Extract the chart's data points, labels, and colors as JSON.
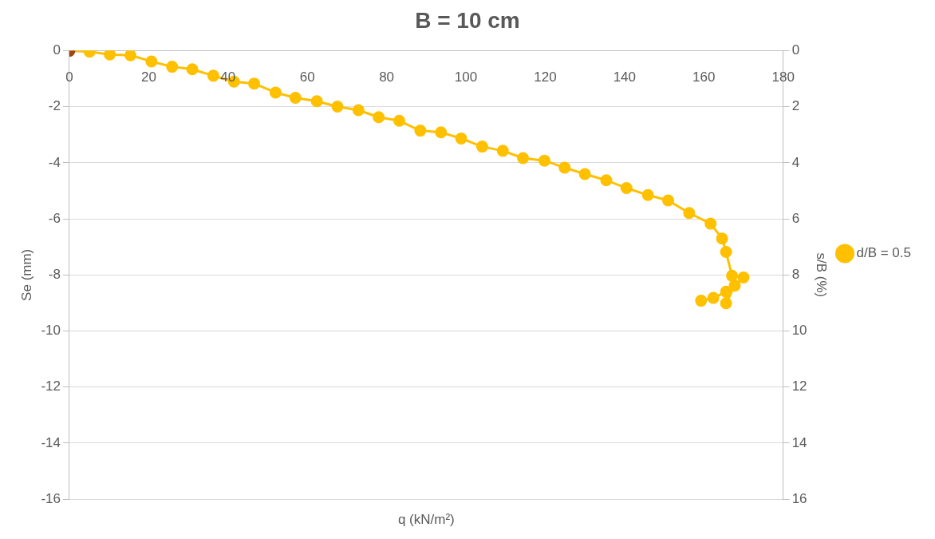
{
  "chart_data": {
    "type": "line",
    "title": "B = 10 cm",
    "xlabel": "q (kN/m²)",
    "ylabel": "Se (mm)",
    "y2label": "s/B (%)",
    "xlim": [
      0,
      180
    ],
    "xticks": [
      0,
      20,
      40,
      60,
      80,
      100,
      120,
      140,
      160,
      180
    ],
    "ylim": [
      -16,
      0
    ],
    "yticks": [
      -16,
      -14,
      -12,
      -10,
      -8,
      -6,
      -4,
      -2,
      0
    ],
    "y2lim": [
      16,
      0
    ],
    "y2ticks": [
      0,
      2,
      4,
      6,
      8,
      10,
      12,
      14,
      16
    ],
    "grid": "y",
    "legend": "right",
    "marker": "circle",
    "line_style": "solid",
    "series": [
      {
        "name": "d/B = 0.5",
        "color": "#ffc000",
        "colors": [
          "#9e480e",
          "#ffc000",
          "#ffc000",
          "#ffc000",
          "#ffc000",
          "#ffc000",
          "#ffc000",
          "#ffc000",
          "#ffc000",
          "#ffc000",
          "#ffc000",
          "#ffc000",
          "#ffc000",
          "#ffc000",
          "#ffc000",
          "#ffc000",
          "#ffc000",
          "#ffc000",
          "#ffc000",
          "#ffc000",
          "#ffc000",
          "#ffc000",
          "#ffc000",
          "#ffc000",
          "#ffc000",
          "#ffc000",
          "#ffc000",
          "#ffc000",
          "#ffc000",
          "#ffc000",
          "#ffc000",
          "#ffc000",
          "#ffc000",
          "#ffc000",
          "#ffc000",
          "#ffc000",
          "#ffc000",
          "#ffc000",
          "#ffc000",
          "#ffc000",
          "#ffc000"
        ],
        "x": [
          0,
          5.1,
          10.2,
          15.4,
          20.7,
          25.9,
          31,
          36.3,
          41.5,
          46.6,
          52,
          57,
          62.4,
          67.6,
          72.9,
          78,
          83.2,
          88.5,
          93.7,
          98.8,
          104.1,
          109.3,
          114.4,
          119.8,
          124.9,
          130,
          135.4,
          140.5,
          145.9,
          151,
          156.3,
          161.7,
          164.6,
          165.6,
          167.1,
          170,
          167.8,
          165.6,
          165.6,
          162.4,
          159.3
        ],
        "values": [
          0,
          -0.03,
          -0.13,
          -0.16,
          -0.38,
          -0.57,
          -0.66,
          -0.89,
          -1.1,
          -1.17,
          -1.49,
          -1.68,
          -1.8,
          -1.99,
          -2.12,
          -2.37,
          -2.5,
          -2.85,
          -2.91,
          -3.13,
          -3.42,
          -3.57,
          -3.83,
          -3.92,
          -4.17,
          -4.4,
          -4.62,
          -4.9,
          -5.15,
          -5.34,
          -5.79,
          -6.17,
          -6.7,
          -7.18,
          -8.03,
          -8.09,
          -8.38,
          -9.01,
          -8.6,
          -8.82,
          -8.92
        ]
      }
    ]
  }
}
